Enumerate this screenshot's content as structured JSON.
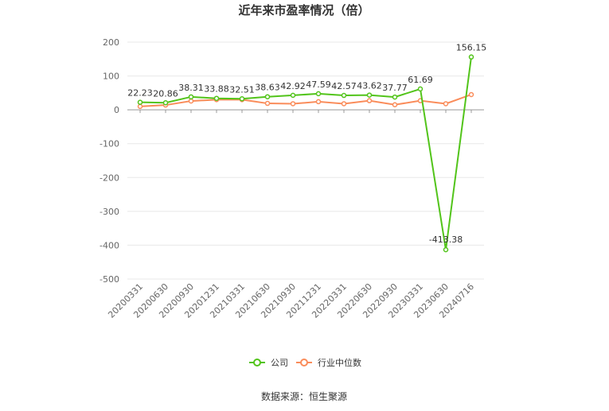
{
  "chart_data": {
    "type": "line",
    "title": "近年来市盈率情况（倍）",
    "categories": [
      "20200331",
      "20200630",
      "20200930",
      "20201231",
      "20210331",
      "20210630",
      "20210930",
      "20211231",
      "20220331",
      "20220630",
      "20220930",
      "20230331",
      "20230630",
      "20240716"
    ],
    "series": [
      {
        "name": "公司",
        "color": "#52c41a",
        "values": [
          22.23,
          20.86,
          38.31,
          33.88,
          32.51,
          38.63,
          42.92,
          47.59,
          42.57,
          43.62,
          37.77,
          61.69,
          -413.38,
          156.15
        ],
        "labels": [
          "22.23",
          "20.86",
          "38.31",
          "33.88",
          "32.51",
          "38.63",
          "42.92",
          "47.59",
          "42.57",
          "43.62",
          "37.77",
          "61.69",
          "-413.38",
          "156.15"
        ]
      },
      {
        "name": "行业中位数",
        "color": "#fa8c5a",
        "values": [
          10,
          14,
          26,
          30,
          30,
          19,
          18,
          24,
          18,
          27,
          15,
          27,
          18,
          45
        ]
      }
    ],
    "yticks": [
      "200",
      "100",
      "0",
      "-100",
      "-200",
      "-300",
      "-400",
      "-500"
    ],
    "ytick_values": [
      200,
      100,
      0,
      -100,
      -200,
      -300,
      -400,
      -500
    ],
    "ylim": [
      -500,
      200
    ],
    "grid": true,
    "legend_position": "bottom"
  },
  "source_text": "数据来源：恒生聚源"
}
